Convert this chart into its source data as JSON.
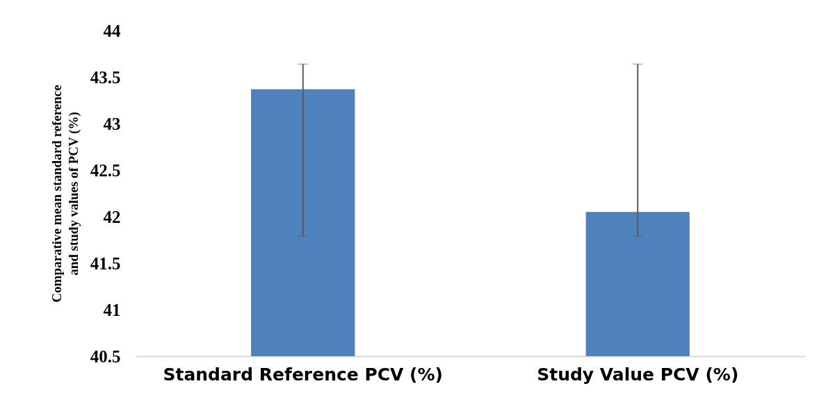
{
  "chart_data": {
    "type": "bar",
    "ylabel": "Comparative mean standard reference and study values of PCV (%)",
    "categories": [
      "Standard Reference PCV (%)",
      "Study Value PCV (%)"
    ],
    "values": [
      43.37,
      42.05
    ],
    "errors": [
      [
        41.79,
        43.64
      ],
      [
        41.79,
        43.64
      ]
    ],
    "color": "#4f81bd",
    "ylim": [
      40.5,
      44
    ],
    "yticks": [
      40.5,
      41,
      41.5,
      42,
      42.5,
      43,
      43.5,
      44
    ],
    "grid": false
  }
}
